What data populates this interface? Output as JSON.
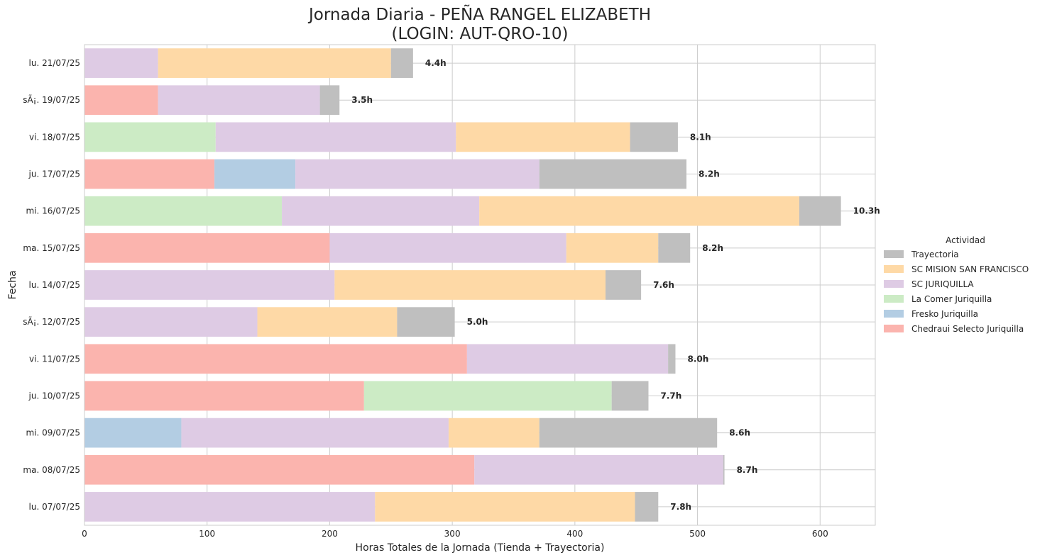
{
  "chart_data": {
    "type": "bar",
    "orientation": "horizontal",
    "stacked": true,
    "title_line1": "Jornada Diaria - PEÑA RANGEL ELIZABETH",
    "title_line2": "(LOGIN: AUT-QRO-10)",
    "xlabel": "Horas Totales de la Jornada (Tienda + Trayectoria)",
    "ylabel": "Fecha",
    "xlim": [
      0,
      645
    ],
    "xticks": [
      0,
      100,
      200,
      300,
      400,
      500,
      600
    ],
    "grid": true,
    "legend": {
      "title": "Actividad",
      "placement": "center-right-outside",
      "entries": [
        "Trayectoria",
        "SC MISION SAN FRANCISCO",
        "SC JURIQUILLA",
        "La Comer Juriquilla",
        "Fresko Juriquilla",
        "Chedraui Selecto Juriquilla"
      ]
    },
    "stack_order": [
      "Chedraui Selecto Juriquilla",
      "Fresko Juriquilla",
      "La Comer Juriquilla",
      "SC JURIQUILLA",
      "SC MISION SAN FRANCISCO",
      "Trayectoria"
    ],
    "colors": {
      "Chedraui Selecto Juriquilla": "#fbb4ae",
      "Fresko Juriquilla": "#b3cde3",
      "La Comer Juriquilla": "#ccebc5",
      "SC JURIQUILLA": "#decbe4",
      "SC MISION SAN FRANCISCO": "#fed9a6",
      "Trayectoria": "#bfbfbf"
    },
    "categories": [
      "lu. 21/07/25",
      "sÃ¡. 19/07/25",
      "vi. 18/07/25",
      "ju. 17/07/25",
      "mi. 16/07/25",
      "ma. 15/07/25",
      "lu. 14/07/25",
      "sÃ¡. 12/07/25",
      "vi. 11/07/25",
      "ju. 10/07/25",
      "mi. 09/07/25",
      "ma. 08/07/25",
      "lu. 07/07/25"
    ],
    "totals": [
      "4.4h",
      "3.5h",
      "8.1h",
      "8.2h",
      "10.3h",
      "8.2h",
      "7.6h",
      "5.0h",
      "8.0h",
      "7.7h",
      "8.6h",
      "8.7h",
      "7.8h"
    ],
    "series": [
      {
        "name": "Chedraui Selecto Juriquilla",
        "values": [
          0,
          60,
          0,
          106,
          0,
          200,
          0,
          0,
          312,
          228,
          0,
          318,
          0
        ]
      },
      {
        "name": "Fresko Juriquilla",
        "values": [
          0,
          0,
          0,
          66,
          0,
          0,
          0,
          0,
          0,
          0,
          79,
          0,
          0
        ]
      },
      {
        "name": "La Comer Juriquilla",
        "values": [
          0,
          0,
          107,
          0,
          161,
          0,
          0,
          0,
          0,
          202,
          0,
          0,
          0
        ]
      },
      {
        "name": "SC JURIQUILLA",
        "values": [
          60,
          132,
          196,
          199,
          161,
          193,
          204,
          141,
          164,
          0,
          218,
          203,
          237
        ]
      },
      {
        "name": "SC MISION SAN FRANCISCO",
        "values": [
          190,
          0,
          142,
          0,
          261,
          75,
          221,
          114,
          0,
          0,
          74,
          0,
          212
        ]
      },
      {
        "name": "Trayectoria",
        "values": [
          18,
          16,
          39,
          120,
          34,
          26,
          29,
          47,
          6,
          30,
          145,
          1,
          19
        ]
      }
    ]
  }
}
